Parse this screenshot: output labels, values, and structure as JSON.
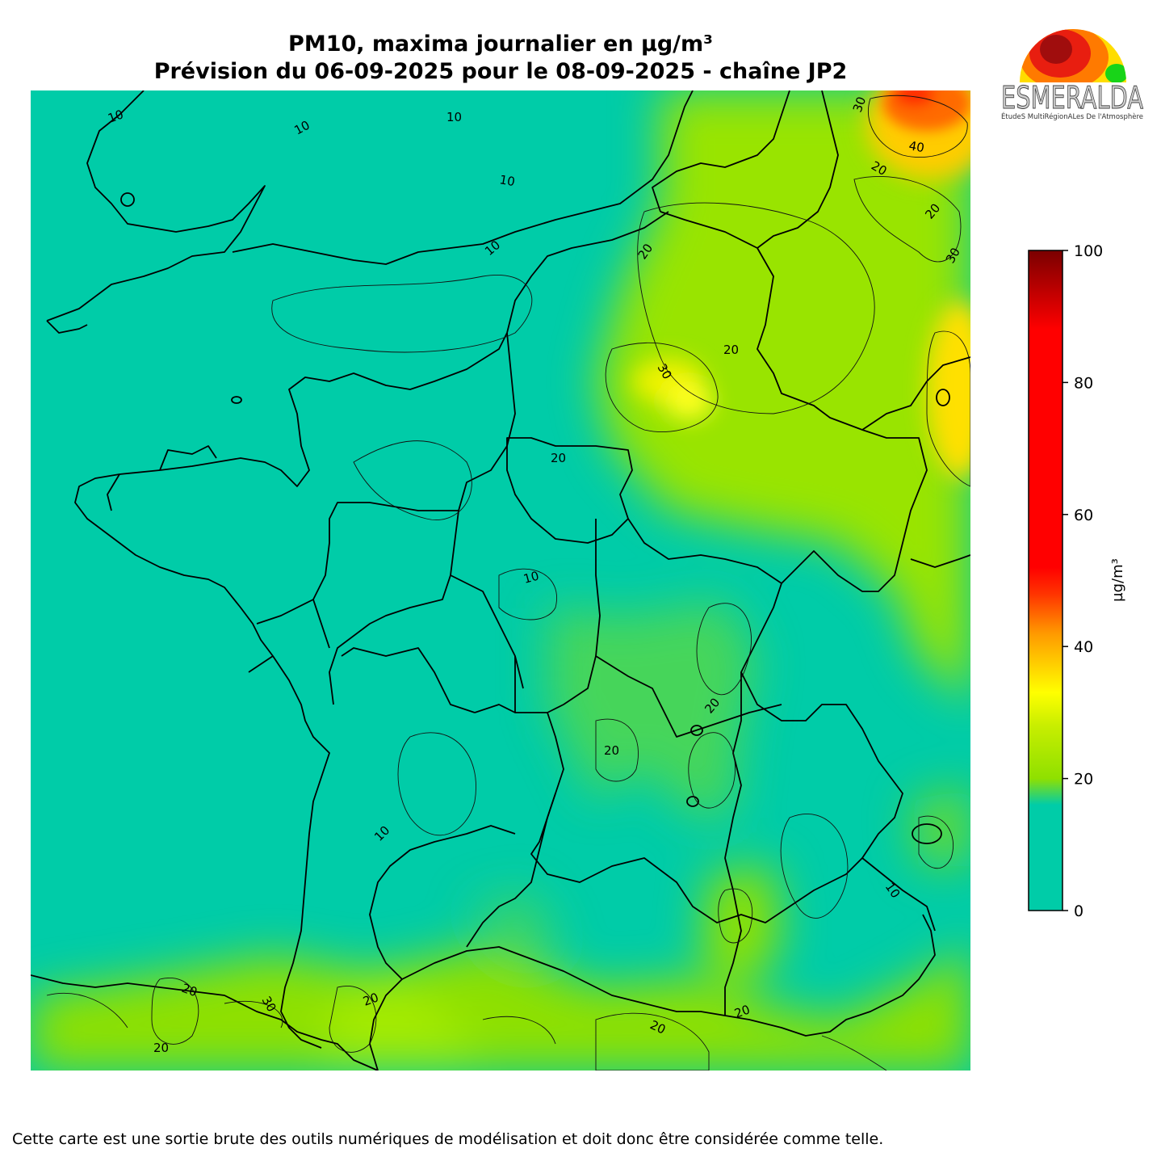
{
  "title": {
    "line1": "PM10, maxima journalier en µg/m³",
    "line2": "Prévision du 06-09-2025 pour le 08-09-2025 - chaîne JP2"
  },
  "logo": {
    "name": "ESMERALDA",
    "subtitle": "ÉtudeS MultiRégionALes De l'Atmosphère"
  },
  "colorbar": {
    "unit": "µg/m³",
    "min": 0,
    "max": 100,
    "ticks": [
      "0",
      "20",
      "40",
      "60",
      "80",
      "100"
    ],
    "stops": [
      {
        "value": 0,
        "color": "#00cca8"
      },
      {
        "value": 16,
        "color": "#00cca8"
      },
      {
        "value": 20,
        "color": "#8fe000"
      },
      {
        "value": 28,
        "color": "#c8ee00"
      },
      {
        "value": 33,
        "color": "#ffff00"
      },
      {
        "value": 42,
        "color": "#ff9900"
      },
      {
        "value": 48,
        "color": "#ff3300"
      },
      {
        "value": 52,
        "color": "#ff0000"
      },
      {
        "value": 88,
        "color": "#ff0000"
      },
      {
        "value": 100,
        "color": "#7a0000"
      }
    ]
  },
  "map": {
    "contour_labels": [
      "10",
      "10",
      "10",
      "10",
      "10",
      "10",
      "10",
      "10",
      "20",
      "20",
      "20",
      "20",
      "20",
      "20",
      "20",
      "20",
      "20",
      "20",
      "20",
      "20",
      "30",
      "30",
      "30",
      "30",
      "40"
    ]
  },
  "footer": "Cette carte est une sortie brute des outils numériques de modélisation et doit donc être considérée comme telle."
}
